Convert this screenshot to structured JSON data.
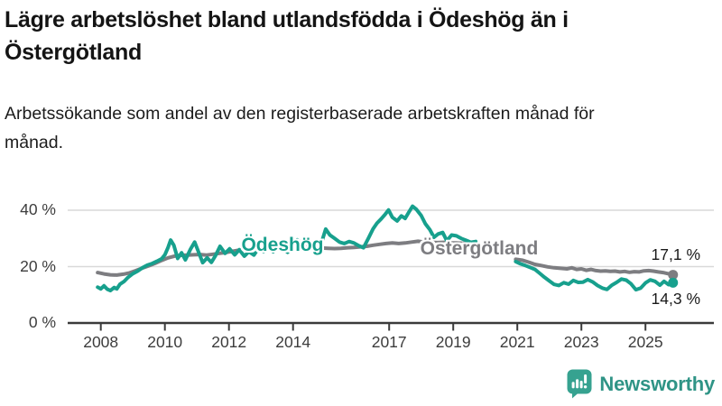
{
  "header": {
    "title": "Lägre arbetslöshet bland utlandsfödda i Ödeshög än i Östergötland",
    "subtitle": "Arbetssökande som andel av den registerbaserade arbetskraften månad för månad."
  },
  "footer": {
    "brand": "Newsworthy"
  },
  "colors": {
    "odeshog_teal": "#17a08d",
    "ostergotland_gray": "#7d7d81",
    "axis": "#3b3b3b",
    "gridline": "#d9d9d9"
  },
  "chart_data": {
    "type": "line",
    "title": "Lägre arbetslöshet bland utlandsfödda i Ödeshög än i Östergötland",
    "subtitle": "Arbetssökande som andel av den registerbaserade arbetskraften månad för månad.",
    "unit": "%",
    "grid": "horizontal",
    "x_axis": {
      "tick_values": [
        2008,
        2010,
        2012,
        2014,
        2017,
        2019,
        2021,
        2023,
        2025
      ],
      "tick_labels": [
        "2008",
        "2010",
        "2012",
        "2014",
        "2017",
        "2019",
        "2021",
        "2023",
        "2025"
      ],
      "range": [
        2007.8,
        2026.3
      ]
    },
    "y_axis": {
      "tick_values": [
        0,
        20,
        40
      ],
      "tick_labels": [
        "0 %",
        "20 %",
        "40 %"
      ],
      "gridlines": [
        20,
        40
      ],
      "range": [
        0,
        46
      ]
    },
    "data_gap": [
      2019.7,
      2020.95
    ],
    "series": [
      {
        "name": "Östergötland",
        "color": "#7d7d81",
        "end_label": "17,1 %",
        "end_value": 17.1,
        "label_anchor": {
          "year": 2019.81,
          "value": 26.2
        },
        "segments": [
          [
            [
              2007.9,
              17.9
            ],
            [
              2008.1,
              17.4
            ],
            [
              2008.3,
              17.1
            ],
            [
              2008.5,
              17.0
            ],
            [
              2008.7,
              17.3
            ],
            [
              2008.9,
              17.8
            ],
            [
              2009.1,
              18.6
            ],
            [
              2009.3,
              19.5
            ],
            [
              2009.5,
              20.3
            ],
            [
              2009.7,
              21.2
            ],
            [
              2009.9,
              22.2
            ],
            [
              2010.1,
              23.1
            ],
            [
              2010.3,
              23.7
            ],
            [
              2010.5,
              24.0
            ],
            [
              2010.7,
              24.1
            ],
            [
              2010.9,
              24.2
            ],
            [
              2011.1,
              24.3
            ],
            [
              2011.3,
              24.1
            ],
            [
              2011.5,
              24.4
            ],
            [
              2011.7,
              24.7
            ],
            [
              2011.9,
              25.0
            ],
            [
              2012.1,
              25.4
            ],
            [
              2012.3,
              25.8
            ],
            [
              2012.5,
              26.1
            ],
            [
              2012.7,
              26.2
            ],
            [
              2012.9,
              26.4
            ],
            [
              2013.1,
              26.4
            ],
            [
              2013.3,
              26.5
            ],
            [
              2013.5,
              26.6
            ],
            [
              2013.7,
              26.7
            ],
            [
              2013.9,
              26.8
            ],
            [
              2014.1,
              27.0
            ],
            [
              2014.3,
              27.1
            ],
            [
              2014.5,
              26.9
            ],
            [
              2014.7,
              26.7
            ],
            [
              2014.9,
              26.6
            ],
            [
              2015.1,
              26.5
            ],
            [
              2015.3,
              26.4
            ],
            [
              2015.5,
              26.5
            ],
            [
              2015.7,
              26.7
            ],
            [
              2015.9,
              26.8
            ],
            [
              2016.1,
              27.0
            ],
            [
              2016.3,
              27.2
            ],
            [
              2016.5,
              27.6
            ],
            [
              2016.7,
              27.9
            ],
            [
              2016.9,
              28.2
            ],
            [
              2017.1,
              28.4
            ],
            [
              2017.3,
              28.2
            ],
            [
              2017.5,
              28.4
            ],
            [
              2017.7,
              28.7
            ],
            [
              2017.9,
              29.0
            ],
            [
              2018.1,
              28.7
            ],
            [
              2018.3,
              28.6
            ],
            [
              2018.5,
              28.5
            ],
            [
              2018.7,
              28.6
            ],
            [
              2018.9,
              28.4
            ],
            [
              2019.1,
              28.4
            ],
            [
              2019.3,
              28.3
            ],
            [
              2019.5,
              28.2
            ],
            [
              2019.7,
              28.1
            ]
          ],
          [
            [
              2020.95,
              22.6
            ],
            [
              2021.15,
              22.3
            ],
            [
              2021.35,
              21.6
            ],
            [
              2021.55,
              20.8
            ],
            [
              2021.75,
              20.4
            ],
            [
              2021.95,
              19.9
            ],
            [
              2022.15,
              19.6
            ],
            [
              2022.35,
              19.4
            ],
            [
              2022.55,
              19.2
            ],
            [
              2022.7,
              19.6
            ],
            [
              2022.85,
              19.0
            ],
            [
              2023.0,
              19.2
            ],
            [
              2023.15,
              18.7
            ],
            [
              2023.3,
              19.0
            ],
            [
              2023.45,
              18.6
            ],
            [
              2023.6,
              18.4
            ],
            [
              2023.75,
              18.5
            ],
            [
              2023.9,
              18.3
            ],
            [
              2024.05,
              18.4
            ],
            [
              2024.2,
              18.1
            ],
            [
              2024.35,
              18.3
            ],
            [
              2024.5,
              18.0
            ],
            [
              2024.65,
              18.2
            ],
            [
              2024.8,
              18.1
            ],
            [
              2024.95,
              18.5
            ],
            [
              2025.1,
              18.6
            ],
            [
              2025.25,
              18.4
            ],
            [
              2025.4,
              18.1
            ],
            [
              2025.55,
              17.9
            ],
            [
              2025.7,
              17.5
            ],
            [
              2025.86,
              17.1
            ]
          ]
        ]
      },
      {
        "name": "Ödeshög",
        "color": "#17a08d",
        "end_label": "14,3 %",
        "end_value": 14.3,
        "label_anchor": {
          "year": 2013.67,
          "value": 27.5
        },
        "segments": [
          [
            [
              2007.9,
              12.7
            ],
            [
              2008.0,
              12.1
            ],
            [
              2008.1,
              13.2
            ],
            [
              2008.2,
              12.0
            ],
            [
              2008.3,
              11.5
            ],
            [
              2008.42,
              12.6
            ],
            [
              2008.5,
              12.1
            ],
            [
              2008.6,
              13.8
            ],
            [
              2008.72,
              14.7
            ],
            [
              2008.85,
              16.2
            ],
            [
              2009.0,
              17.5
            ],
            [
              2009.15,
              18.4
            ],
            [
              2009.3,
              19.6
            ],
            [
              2009.45,
              20.5
            ],
            [
              2009.6,
              21.1
            ],
            [
              2009.75,
              21.9
            ],
            [
              2009.9,
              22.8
            ],
            [
              2010.0,
              24.2
            ],
            [
              2010.1,
              26.8
            ],
            [
              2010.18,
              29.4
            ],
            [
              2010.28,
              27.6
            ],
            [
              2010.4,
              22.9
            ],
            [
              2010.52,
              24.9
            ],
            [
              2010.64,
              22.4
            ],
            [
              2010.8,
              26.2
            ],
            [
              2010.93,
              28.7
            ],
            [
              2011.05,
              25.2
            ],
            [
              2011.18,
              21.4
            ],
            [
              2011.32,
              23.1
            ],
            [
              2011.45,
              21.5
            ],
            [
              2011.58,
              23.9
            ],
            [
              2011.72,
              27.2
            ],
            [
              2011.88,
              24.7
            ],
            [
              2012.02,
              26.3
            ],
            [
              2012.18,
              24.2
            ],
            [
              2012.32,
              26.0
            ],
            [
              2012.48,
              23.7
            ],
            [
              2012.62,
              25.3
            ],
            [
              2012.78,
              24.1
            ],
            [
              2012.93,
              26.7
            ],
            [
              2013.08,
              25.4
            ],
            [
              2013.23,
              27.0
            ],
            [
              2013.38,
              25.3
            ],
            [
              2013.53,
              27.9
            ],
            [
              2013.68,
              26.6
            ],
            [
              2013.83,
              25.1
            ],
            [
              2013.98,
              27.3
            ],
            [
              2014.13,
              29.5
            ],
            [
              2014.3,
              28.1
            ],
            [
              2014.45,
              28.8
            ],
            [
              2014.6,
              27.3
            ],
            [
              2014.75,
              25.7
            ],
            [
              2014.9,
              29.0
            ],
            [
              2015.02,
              33.3
            ],
            [
              2015.15,
              31.2
            ],
            [
              2015.3,
              30.0
            ],
            [
              2015.45,
              28.7
            ],
            [
              2015.6,
              28.2
            ],
            [
              2015.75,
              28.9
            ],
            [
              2015.9,
              28.4
            ],
            [
              2016.05,
              27.4
            ],
            [
              2016.2,
              26.7
            ],
            [
              2016.35,
              30.0
            ],
            [
              2016.5,
              33.4
            ],
            [
              2016.62,
              35.4
            ],
            [
              2016.75,
              36.9
            ],
            [
              2016.88,
              38.6
            ],
            [
              2016.98,
              40.1
            ],
            [
              2017.1,
              37.5
            ],
            [
              2017.25,
              36.2
            ],
            [
              2017.38,
              38.0
            ],
            [
              2017.5,
              37.1
            ],
            [
              2017.62,
              39.4
            ],
            [
              2017.73,
              41.4
            ],
            [
              2017.85,
              40.3
            ],
            [
              2018.0,
              38.1
            ],
            [
              2018.13,
              35.2
            ],
            [
              2018.27,
              33.1
            ],
            [
              2018.4,
              30.4
            ],
            [
              2018.53,
              31.6
            ],
            [
              2018.67,
              32.1
            ],
            [
              2018.8,
              29.2
            ],
            [
              2018.95,
              31.2
            ],
            [
              2019.1,
              30.9
            ],
            [
              2019.25,
              30.0
            ],
            [
              2019.4,
              29.3
            ],
            [
              2019.55,
              28.6
            ],
            [
              2019.7,
              28.9
            ]
          ],
          [
            [
              2020.95,
              21.8
            ],
            [
              2021.1,
              21.0
            ],
            [
              2021.25,
              20.4
            ],
            [
              2021.4,
              19.7
            ],
            [
              2021.55,
              19.0
            ],
            [
              2021.7,
              17.6
            ],
            [
              2021.85,
              16.2
            ],
            [
              2022.0,
              14.9
            ],
            [
              2022.15,
              13.7
            ],
            [
              2022.3,
              13.3
            ],
            [
              2022.45,
              14.3
            ],
            [
              2022.6,
              13.8
            ],
            [
              2022.75,
              15.1
            ],
            [
              2022.9,
              14.4
            ],
            [
              2023.05,
              14.5
            ],
            [
              2023.2,
              15.4
            ],
            [
              2023.35,
              14.6
            ],
            [
              2023.5,
              13.3
            ],
            [
              2023.65,
              12.4
            ],
            [
              2023.8,
              11.9
            ],
            [
              2023.95,
              13.4
            ],
            [
              2024.1,
              14.4
            ],
            [
              2024.25,
              15.6
            ],
            [
              2024.4,
              15.2
            ],
            [
              2024.55,
              13.9
            ],
            [
              2024.7,
              11.8
            ],
            [
              2024.85,
              12.4
            ],
            [
              2025.0,
              14.2
            ],
            [
              2025.15,
              15.3
            ],
            [
              2025.3,
              14.8
            ],
            [
              2025.45,
              13.4
            ],
            [
              2025.58,
              14.8
            ],
            [
              2025.72,
              13.6
            ],
            [
              2025.86,
              14.3
            ]
          ]
        ]
      }
    ]
  }
}
